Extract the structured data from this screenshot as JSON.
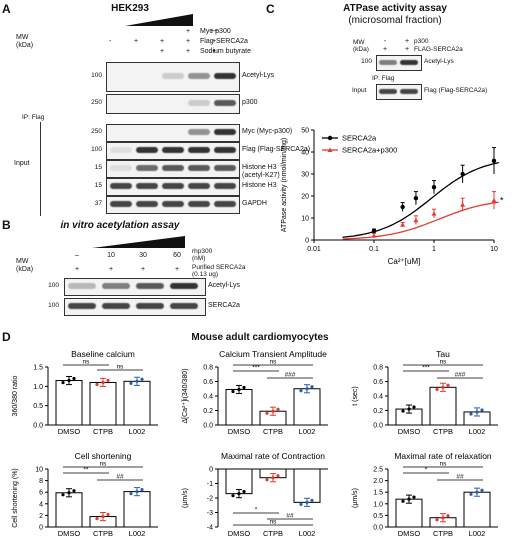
{
  "panelA": {
    "letter": "A",
    "title": "HEK293",
    "mw_label": "MW\n(kDa)",
    "conditions": [
      {
        "label": "Myc-p300",
        "symbols": [
          "",
          "",
          "",
          "+",
          "++"
        ]
      },
      {
        "label": "Flag-SERCA2a",
        "symbols": [
          "-",
          "+",
          "+",
          "+",
          "+"
        ]
      },
      {
        "label": "Sodium butyrate",
        "symbols": [
          "",
          "",
          "+",
          "+",
          "+"
        ]
      }
    ],
    "ip_label": "IP: Flag",
    "input_label": "Input",
    "blots": [
      {
        "mw": "100",
        "label": "Acetyl-Lys"
      },
      {
        "mw": "250",
        "label": "p300"
      },
      {
        "mw": "250",
        "label": "Myc (Myc-p300)"
      },
      {
        "mw": "100",
        "label": "Flag (Flag-SERCA2a)"
      },
      {
        "mw": "15",
        "label": "Histone H3\n(acetyl-K27)"
      },
      {
        "mw": "15",
        "label": "Histone H3"
      },
      {
        "mw": "37",
        "label": "GAPDH"
      }
    ]
  },
  "panelB": {
    "letter": "B",
    "title": "in vitro acetylation assay",
    "mw_label": "MW\n(kDa)",
    "rhp300_label": "rhp300\n(nM)",
    "rhp300_values": [
      "–",
      "10",
      "30",
      "60"
    ],
    "purified_label": "Purified SERCA2a\n(0.13 ug)",
    "purified_symbols": [
      "+",
      "+",
      "+",
      "+"
    ],
    "blots": [
      {
        "mw": "100",
        "label": "Acetyl-Lys"
      },
      {
        "mw": "100",
        "label": "SERCA2a"
      }
    ]
  },
  "panelC": {
    "letter": "C",
    "title": "ATPase activity assay",
    "subtitle": "(microsomal fraction)",
    "mw_label": "MW\n(kDa)",
    "conditions": [
      {
        "label": "p300",
        "symbols": [
          "-",
          "+"
        ]
      },
      {
        "label": "FLAG-SERCA2a",
        "symbols": [
          "+",
          "+"
        ]
      }
    ],
    "blots": [
      {
        "mw": "100",
        "label": "Acetyl-Lys"
      },
      {
        "mw": "",
        "label": "Flag (Flag-SERCA2a)"
      }
    ],
    "ip_label": "IP: Flag",
    "input_label": "Input",
    "chart_data": {
      "type": "line",
      "xscale": "log",
      "xlabel": "Ca²⁺[uM]",
      "ylabel": "ATPase activity (nmol/min/mg)",
      "xticks": [
        "0.01",
        "0.1",
        "1",
        "10"
      ],
      "yticks": [
        "0",
        "10",
        "20",
        "30",
        "40",
        "50"
      ],
      "ylim": [
        0,
        50
      ],
      "significance": "*",
      "series": [
        {
          "name": "SERCA2a",
          "color": "#000000",
          "x": [
            0.1,
            0.3,
            0.5,
            1,
            3,
            10
          ],
          "y": [
            4,
            15,
            19,
            24,
            30,
            36
          ],
          "err": [
            1,
            2,
            3,
            3,
            4,
            6
          ]
        },
        {
          "name": "SERCA2a+p300",
          "color": "#e8392f",
          "x": [
            0.1,
            0.3,
            0.5,
            1,
            3,
            10
          ],
          "y": [
            2,
            7,
            9,
            12,
            16,
            18
          ],
          "err": [
            1,
            1,
            2,
            2,
            3,
            4
          ]
        }
      ]
    }
  },
  "panelD": {
    "letter": "D",
    "title": "Mouse adult cardiomyocytes",
    "charts": [
      {
        "title": "Baseline calcium",
        "ylabel": "360/380 ratio",
        "type": "bar",
        "categories": [
          "DMSO",
          "CTPB",
          "L002"
        ],
        "values": [
          1.15,
          1.1,
          1.13
        ],
        "ylim": [
          0,
          1.5
        ],
        "yticks": [
          "0.0",
          "0.5",
          "1.0",
          "1.5"
        ],
        "sig": [
          {
            "a": 0,
            "b": 1,
            "t": "ns"
          },
          {
            "a": 1,
            "b": 2,
            "t": "ns"
          }
        ]
      },
      {
        "title": "Calcium Transient Amplitude",
        "ylabel": "Δ[Ca²⁺]i(340/380)",
        "type": "bar",
        "categories": [
          "DMSO",
          "CTPB",
          "L002"
        ],
        "values": [
          0.49,
          0.19,
          0.5
        ],
        "ylim": [
          0,
          0.8
        ],
        "yticks": [
          "0.0",
          "0.2",
          "0.4",
          "0.6",
          "0.8"
        ],
        "sig": [
          {
            "a": 0,
            "b": 2,
            "t": "ns"
          },
          {
            "a": 0,
            "b": 1,
            "t": "***"
          },
          {
            "a": 1,
            "b": 2,
            "t": "###"
          }
        ]
      },
      {
        "title": "Tau",
        "ylabel": "t (sec)",
        "type": "bar",
        "categories": [
          "DMSO",
          "CTPB",
          "L002"
        ],
        "values": [
          0.22,
          0.52,
          0.18
        ],
        "ylim": [
          0,
          0.8
        ],
        "yticks": [
          "0.0",
          "0.2",
          "0.4",
          "0.6",
          "0.8"
        ],
        "sig": [
          {
            "a": 0,
            "b": 2,
            "t": "ns"
          },
          {
            "a": 0,
            "b": 1,
            "t": "***"
          },
          {
            "a": 1,
            "b": 2,
            "t": "###"
          }
        ]
      },
      {
        "title": "Cell shortening",
        "ylabel": "Cell shortening (%)",
        "type": "bar",
        "categories": [
          "DMSO",
          "CTPB",
          "L002"
        ],
        "values": [
          5.9,
          1.8,
          6.1
        ],
        "ylim": [
          0,
          10
        ],
        "yticks": [
          "0",
          "2",
          "4",
          "6",
          "8",
          "10"
        ],
        "sig": [
          {
            "a": 0,
            "b": 2,
            "t": "ns"
          },
          {
            "a": 0,
            "b": 1,
            "t": "**"
          },
          {
            "a": 1,
            "b": 2,
            "t": "##"
          }
        ]
      },
      {
        "title": "Maximal rate of Contraction",
        "ylabel": "(μm/s)",
        "type": "bar",
        "categories": [
          "DMSO",
          "CTPB",
          "L002"
        ],
        "values": [
          -1.7,
          -0.6,
          -2.3
        ],
        "ylim": [
          -4,
          0
        ],
        "yticks": [
          "0",
          "-1",
          "-2",
          "-3",
          "-4"
        ],
        "sig": [
          {
            "a": 0,
            "b": 1,
            "t": "*"
          },
          {
            "a": 1,
            "b": 2,
            "t": "##"
          },
          {
            "a": 0,
            "b": 2,
            "t": "ns"
          }
        ]
      },
      {
        "title": "Maximal rate of relaxation",
        "ylabel": "(μm/s)",
        "type": "bar",
        "categories": [
          "DMSO",
          "CTPB",
          "L002"
        ],
        "values": [
          1.2,
          0.4,
          1.5
        ],
        "ylim": [
          0,
          2.5
        ],
        "yticks": [
          "0.0",
          "0.5",
          "1.0",
          "1.5",
          "2.0",
          "2.5"
        ],
        "sig": [
          {
            "a": 0,
            "b": 2,
            "t": "ns"
          },
          {
            "a": 0,
            "b": 1,
            "t": "*"
          },
          {
            "a": 1,
            "b": 2,
            "t": "##"
          }
        ]
      }
    ],
    "bar_colors": [
      "#000000",
      "#e8392f",
      "#2b5fb4"
    ]
  }
}
